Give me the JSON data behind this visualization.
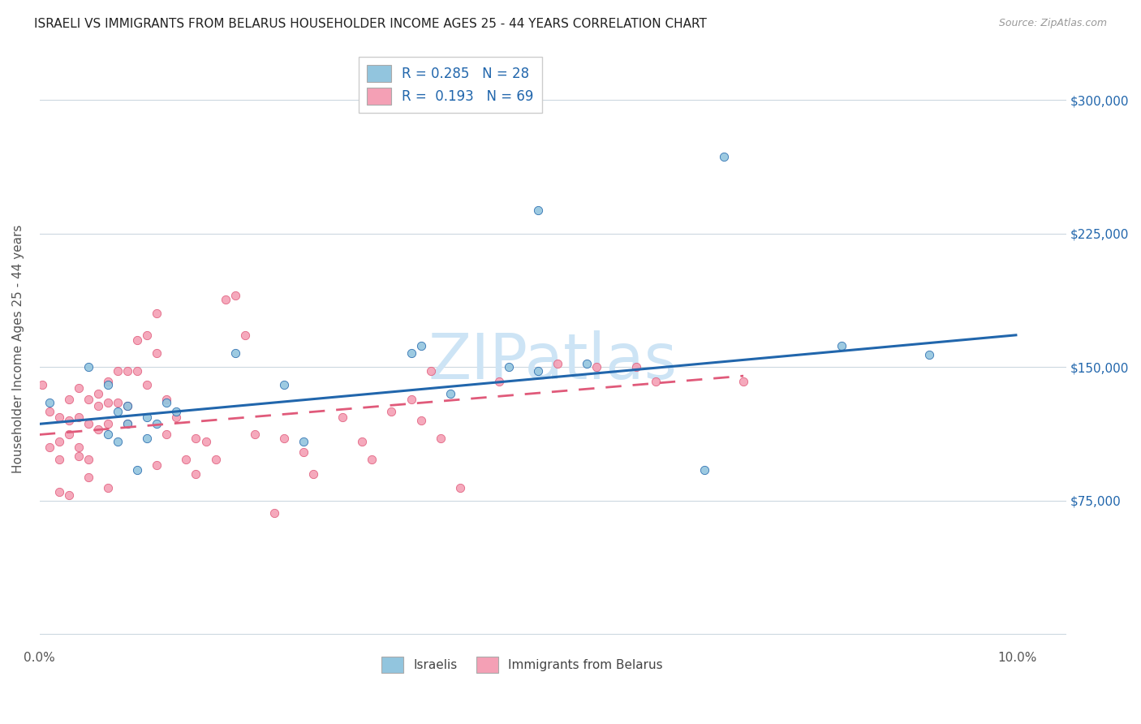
{
  "title": "ISRAELI VS IMMIGRANTS FROM BELARUS HOUSEHOLDER INCOME AGES 25 - 44 YEARS CORRELATION CHART",
  "source": "Source: ZipAtlas.com",
  "ylabel": "Householder Income Ages 25 - 44 years",
  "xlim": [
    0.0,
    0.105
  ],
  "ylim": [
    -5000,
    325000
  ],
  "xticks": [
    0.0,
    0.02,
    0.04,
    0.06,
    0.08,
    0.1
  ],
  "xticklabels": [
    "0.0%",
    "",
    "",
    "",
    "",
    "10.0%"
  ],
  "ytick_values": [
    0,
    75000,
    150000,
    225000,
    300000
  ],
  "ytick_labels": [
    "",
    "$75,000",
    "$150,000",
    "$225,000",
    "$300,000"
  ],
  "blue_R": "0.285",
  "blue_N": "28",
  "pink_R": "0.193",
  "pink_N": "69",
  "blue_color": "#92c5de",
  "pink_color": "#f4a0b5",
  "blue_line_color": "#2166ac",
  "pink_line_color": "#e05a7a",
  "watermark": "ZIPatlas",
  "watermark_color": "#cde4f5",
  "legend_label_blue": "Israelis",
  "legend_label_pink": "Immigrants from Belarus",
  "blue_trend_x0": 0.0,
  "blue_trend_y0": 118000,
  "blue_trend_x1": 0.1,
  "blue_trend_y1": 168000,
  "pink_trend_x0": 0.0,
  "pink_trend_y0": 112000,
  "pink_trend_x1": 0.072,
  "pink_trend_y1": 145000,
  "blue_points_x": [
    0.001,
    0.005,
    0.007,
    0.007,
    0.008,
    0.008,
    0.009,
    0.009,
    0.01,
    0.011,
    0.011,
    0.012,
    0.013,
    0.014,
    0.02,
    0.025,
    0.027,
    0.038,
    0.039,
    0.042,
    0.048,
    0.051,
    0.051,
    0.056,
    0.068,
    0.07,
    0.082,
    0.091
  ],
  "blue_points_y": [
    130000,
    150000,
    112000,
    140000,
    108000,
    125000,
    118000,
    128000,
    92000,
    110000,
    122000,
    118000,
    130000,
    125000,
    158000,
    140000,
    108000,
    158000,
    162000,
    135000,
    150000,
    148000,
    238000,
    152000,
    92000,
    268000,
    162000,
    157000
  ],
  "pink_points_x": [
    0.0003,
    0.001,
    0.001,
    0.002,
    0.002,
    0.002,
    0.003,
    0.003,
    0.003,
    0.004,
    0.004,
    0.004,
    0.005,
    0.005,
    0.005,
    0.006,
    0.006,
    0.006,
    0.007,
    0.007,
    0.007,
    0.008,
    0.008,
    0.009,
    0.009,
    0.01,
    0.01,
    0.011,
    0.011,
    0.012,
    0.012,
    0.013,
    0.013,
    0.014,
    0.015,
    0.016,
    0.016,
    0.017,
    0.018,
    0.019,
    0.02,
    0.021,
    0.022,
    0.024,
    0.025,
    0.027,
    0.028,
    0.031,
    0.033,
    0.034,
    0.036,
    0.038,
    0.039,
    0.04,
    0.041,
    0.043,
    0.047,
    0.053,
    0.057,
    0.061,
    0.063,
    0.072,
    0.002,
    0.003,
    0.004,
    0.005,
    0.007,
    0.009,
    0.012
  ],
  "pink_points_y": [
    140000,
    125000,
    105000,
    122000,
    108000,
    98000,
    132000,
    120000,
    112000,
    138000,
    122000,
    105000,
    132000,
    118000,
    98000,
    135000,
    128000,
    115000,
    142000,
    130000,
    118000,
    148000,
    130000,
    148000,
    128000,
    165000,
    148000,
    168000,
    140000,
    180000,
    158000,
    132000,
    112000,
    122000,
    98000,
    110000,
    90000,
    108000,
    98000,
    188000,
    190000,
    168000,
    112000,
    68000,
    110000,
    102000,
    90000,
    122000,
    108000,
    98000,
    125000,
    132000,
    120000,
    148000,
    110000,
    82000,
    142000,
    152000,
    150000,
    150000,
    142000,
    142000,
    80000,
    78000,
    100000,
    88000,
    82000,
    118000,
    95000
  ]
}
